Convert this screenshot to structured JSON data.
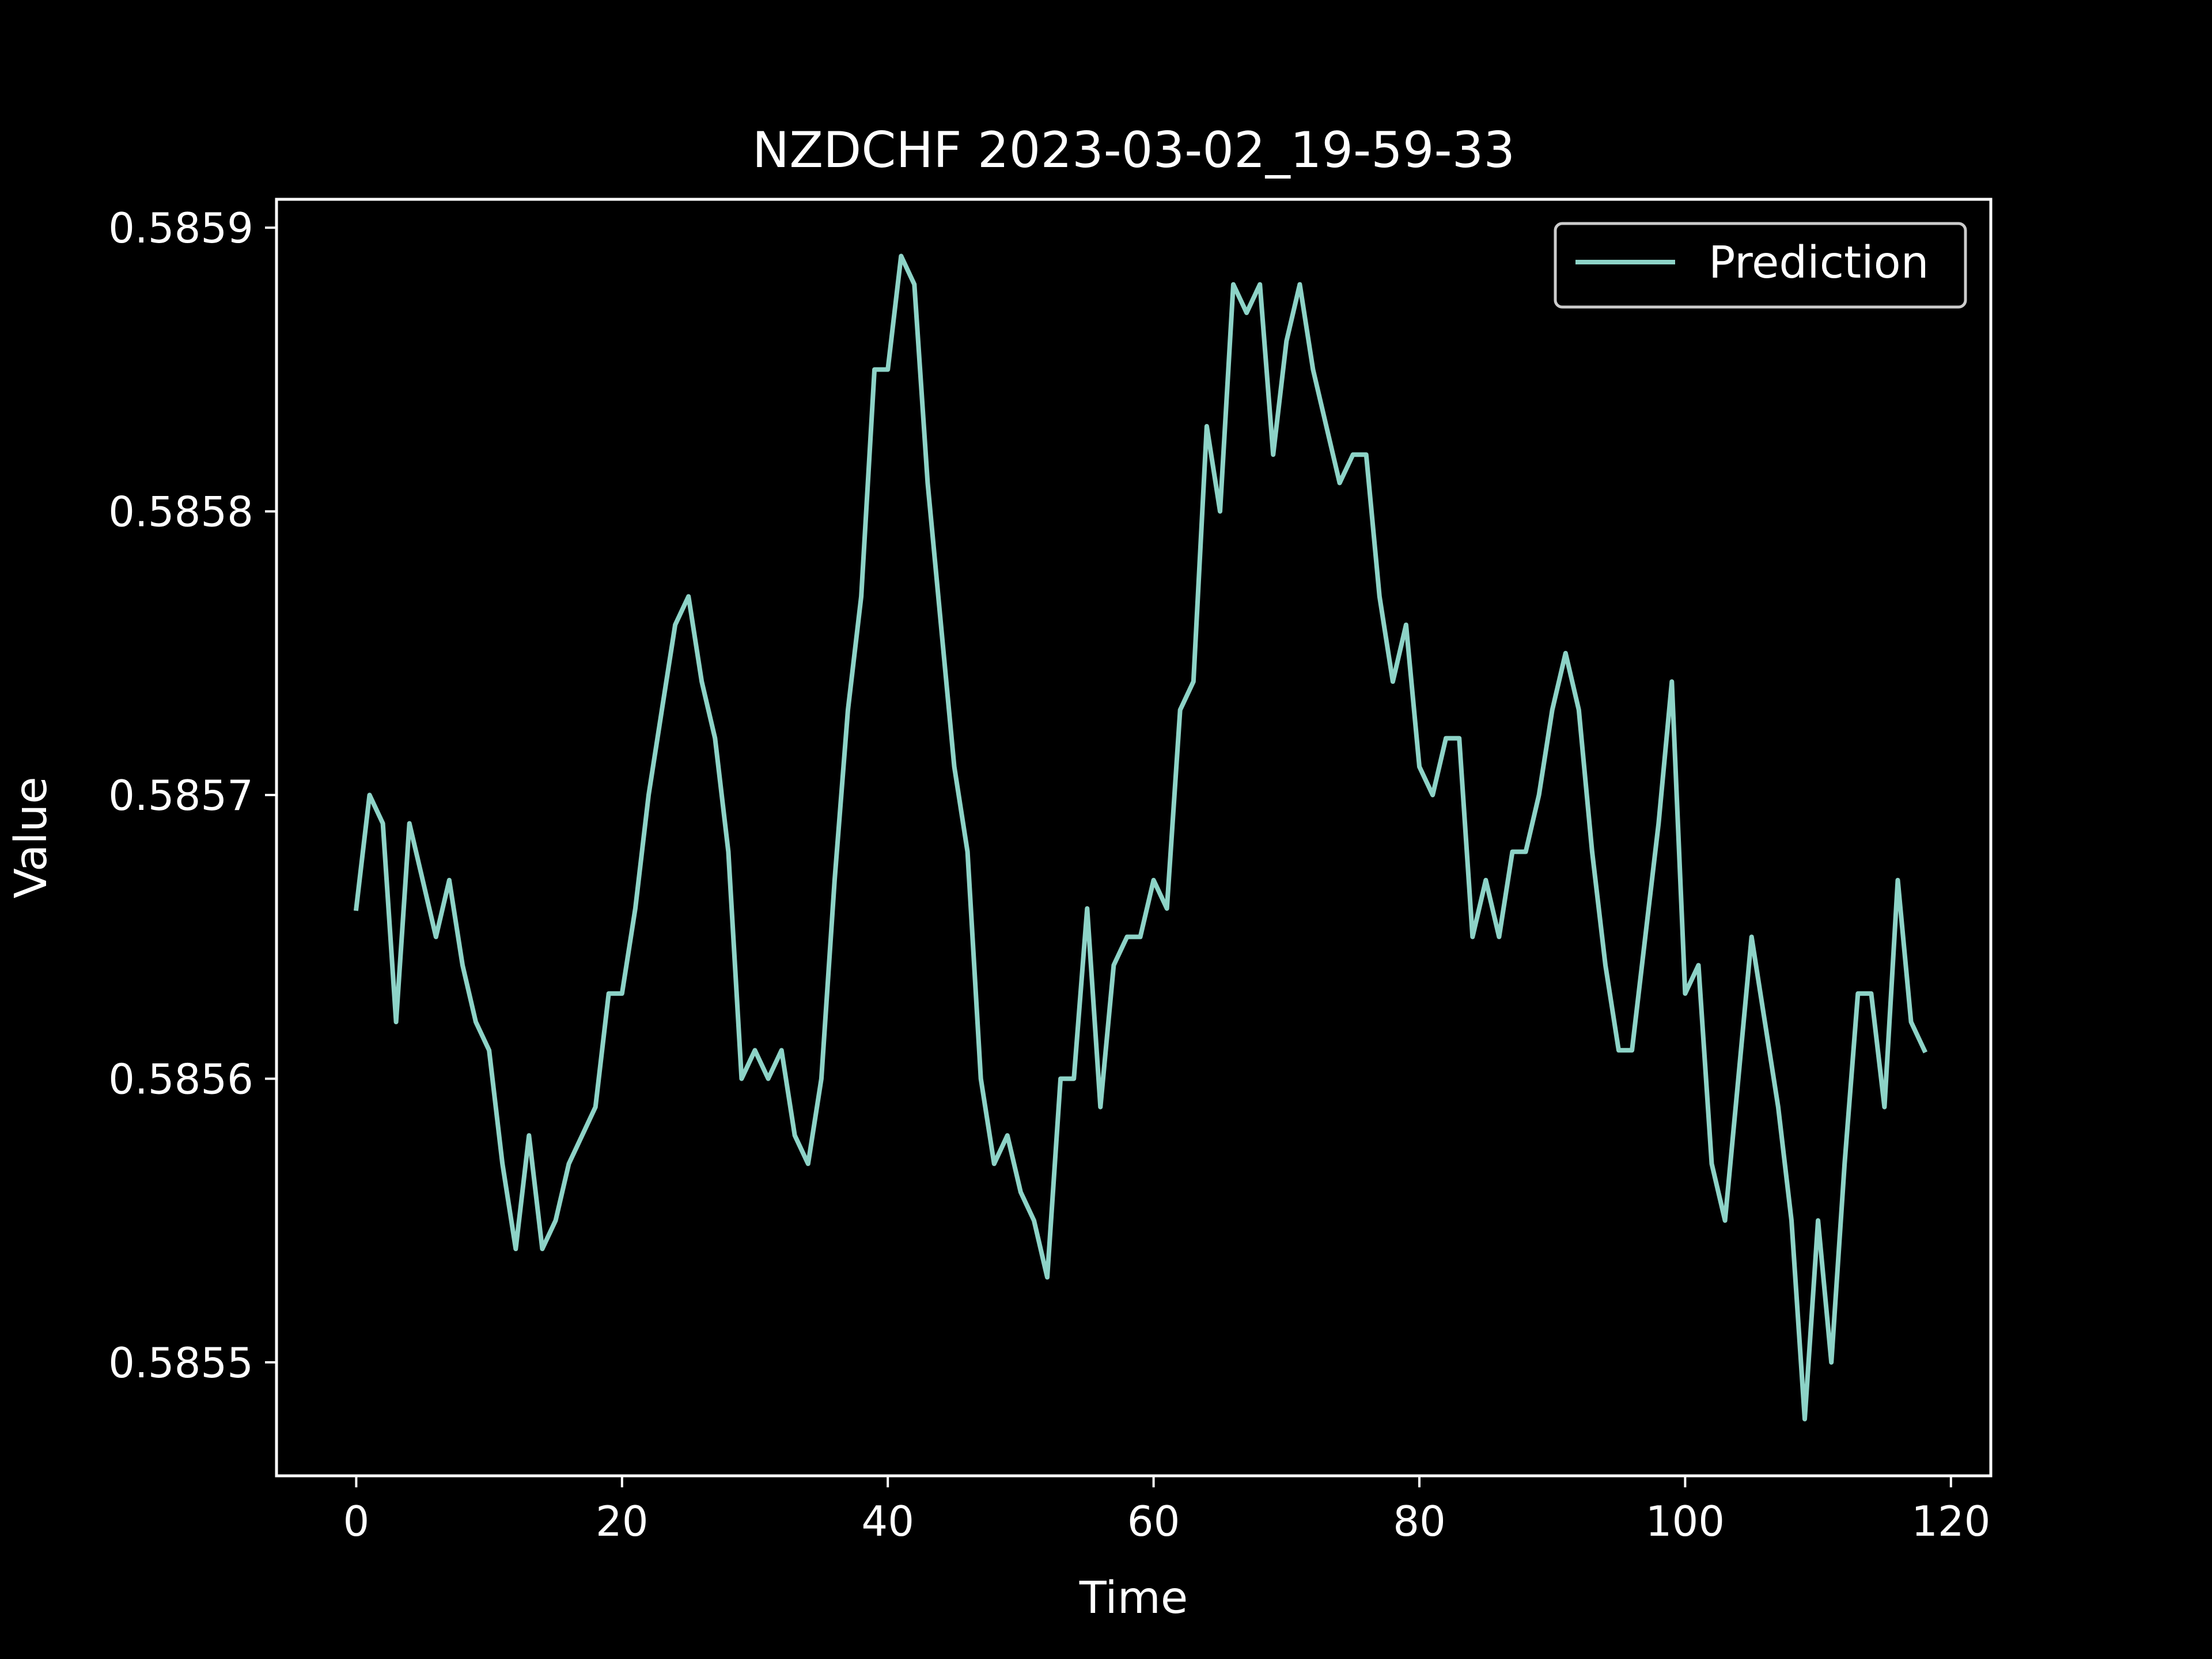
{
  "chart_data": {
    "type": "line",
    "title": "NZDCHF 2023-03-02_19-59-33",
    "xlabel": "Time",
    "ylabel": "Value",
    "xlim": [
      -6,
      123
    ],
    "ylim": [
      0.58546,
      0.58591
    ],
    "xticks": [
      0,
      20,
      40,
      60,
      80,
      100,
      120
    ],
    "yticks": [
      0.5855,
      0.5856,
      0.5857,
      0.5858,
      0.5859
    ],
    "ytick_labels": [
      "0.5855",
      "0.5856",
      "0.5857",
      "0.5858",
      "0.5859"
    ],
    "grid": false,
    "legend_position": "top-right",
    "series": [
      {
        "name": "Prediction",
        "color": "#8dd3c7",
        "values": [
          0.58566,
          0.5857,
          0.58569,
          0.58562,
          0.58569,
          0.58567,
          0.58565,
          0.58567,
          0.58564,
          0.58562,
          0.58561,
          0.58557,
          0.58554,
          0.58558,
          0.58554,
          0.58555,
          0.58557,
          0.58558,
          0.58559,
          0.58563,
          0.58563,
          0.58566,
          0.5857,
          0.58573,
          0.58576,
          0.58577,
          0.58574,
          0.58572,
          0.58568,
          0.5856,
          0.58561,
          0.5856,
          0.58561,
          0.58558,
          0.58557,
          0.5856,
          0.58567,
          0.58573,
          0.58577,
          0.58585,
          0.58585,
          0.58589,
          0.58588,
          0.58581,
          0.58576,
          0.58571,
          0.58568,
          0.5856,
          0.58557,
          0.58558,
          0.58556,
          0.58555,
          0.58553,
          0.5856,
          0.5856,
          0.58566,
          0.58559,
          0.58564,
          0.58565,
          0.58565,
          0.58567,
          0.58566,
          0.58573,
          0.58574,
          0.58583,
          0.5858,
          0.58588,
          0.58587,
          0.58588,
          0.58582,
          0.58586,
          0.58588,
          0.58585,
          0.58583,
          0.58581,
          0.58582,
          0.58582,
          0.58577,
          0.58574,
          0.58576,
          0.58571,
          0.5857,
          0.58572,
          0.58572,
          0.58565,
          0.58567,
          0.58565,
          0.58568,
          0.58568,
          0.5857,
          0.58573,
          0.58575,
          0.58573,
          0.58568,
          0.58564,
          0.58561,
          0.58561,
          0.58565,
          0.58569,
          0.58574,
          0.58563,
          0.58564,
          0.58557,
          0.58555,
          0.5856,
          0.58565,
          0.58562,
          0.58559,
          0.58555,
          0.58548,
          0.58555,
          0.5855,
          0.58557,
          0.58563,
          0.58563,
          0.58559,
          0.58567,
          0.58562,
          0.58561
        ]
      }
    ]
  }
}
